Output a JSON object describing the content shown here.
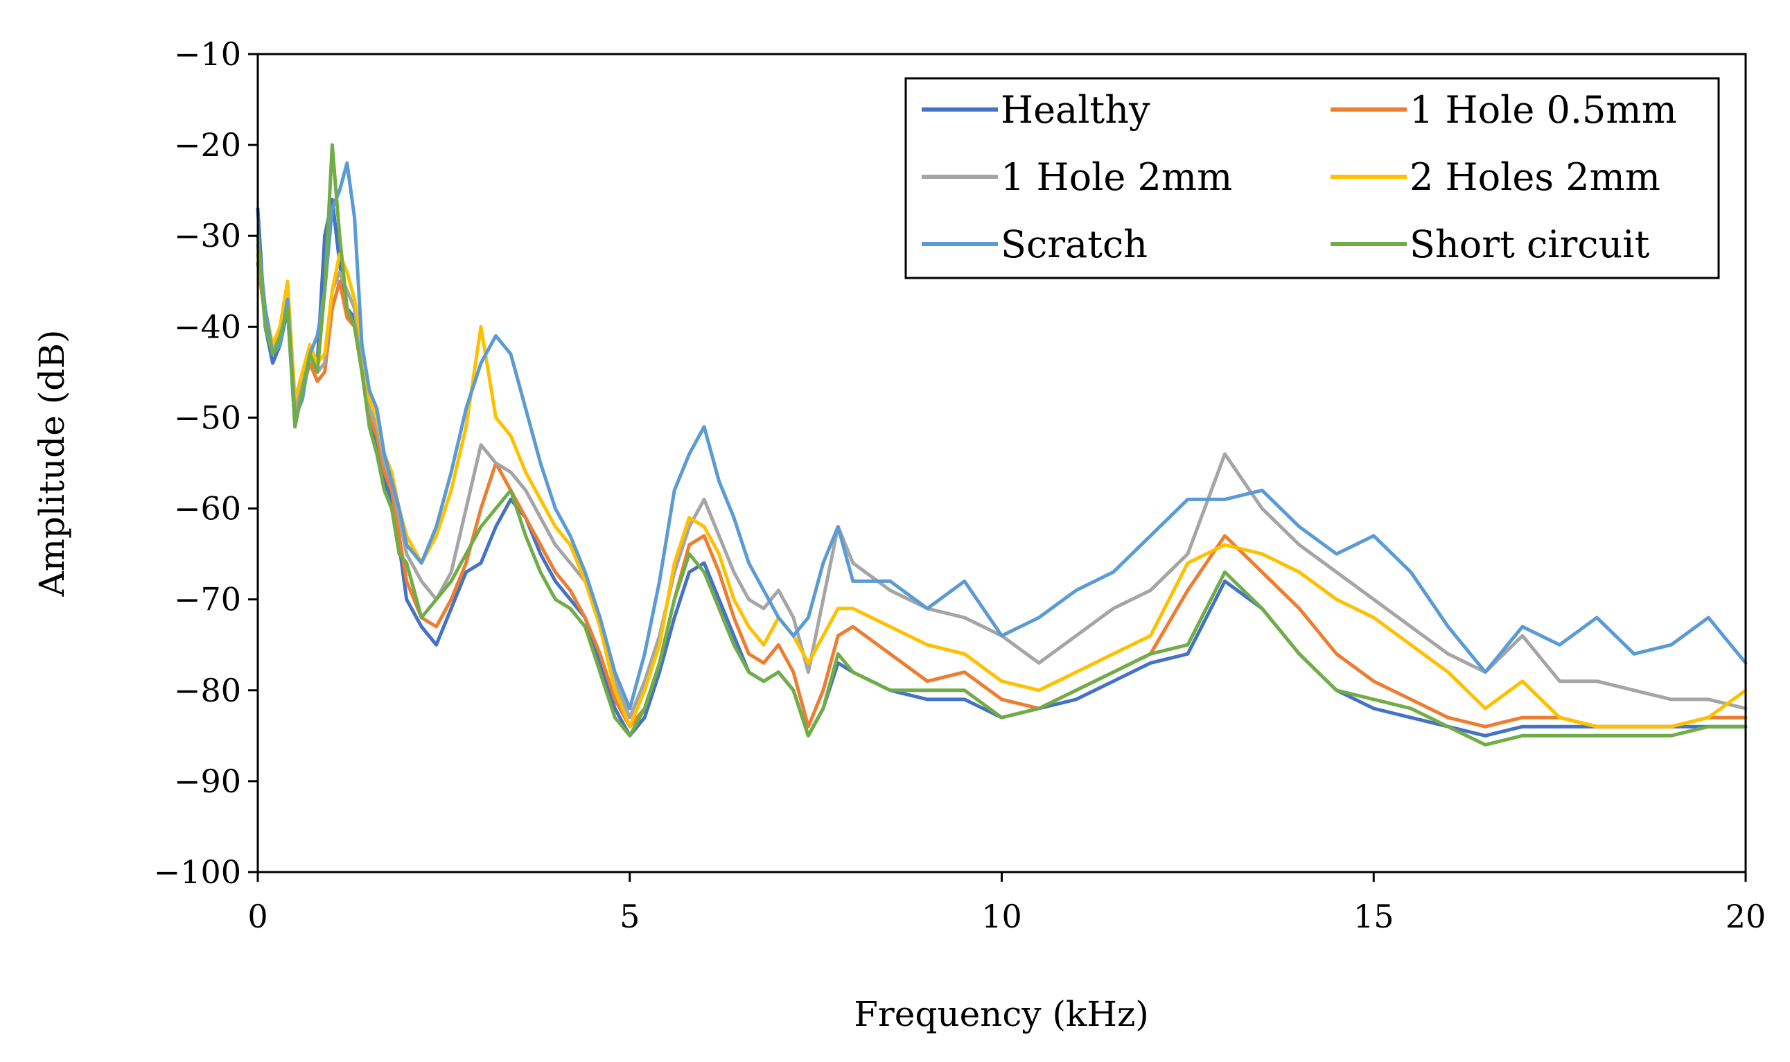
{
  "chart_data": {
    "type": "line",
    "title": "",
    "xlabel": "Frequency (kHz)",
    "ylabel": "Amplitude  (dB)",
    "xlim": [
      0,
      20
    ],
    "ylim": [
      -100,
      -10
    ],
    "xticks": [
      0,
      5,
      10,
      15,
      20
    ],
    "xtick_labels": [
      "0",
      "5",
      "10",
      "15",
      "20"
    ],
    "yticks": [
      -10,
      -20,
      -30,
      -40,
      -50,
      -60,
      -70,
      -80,
      -90,
      -100
    ],
    "ytick_labels": [
      "−10",
      "−20",
      "−30",
      "−40",
      "−50",
      "−60",
      "−70",
      "−80",
      "−90",
      "−100"
    ],
    "legend_position": "top-right",
    "legend_columns": 2,
    "x": [
      0,
      0.1,
      0.2,
      0.3,
      0.4,
      0.5,
      0.6,
      0.7,
      0.8,
      0.9,
      1.0,
      1.1,
      1.2,
      1.3,
      1.4,
      1.5,
      1.6,
      1.7,
      1.8,
      1.9,
      2.0,
      2.2,
      2.4,
      2.6,
      2.8,
      3.0,
      3.2,
      3.4,
      3.6,
      3.8,
      4.0,
      4.2,
      4.4,
      4.6,
      4.8,
      5.0,
      5.2,
      5.4,
      5.6,
      5.8,
      6.0,
      6.2,
      6.4,
      6.6,
      6.8,
      7.0,
      7.2,
      7.4,
      7.6,
      7.8,
      8.0,
      8.5,
      9.0,
      9.5,
      10.0,
      10.5,
      11.0,
      11.5,
      12.0,
      12.5,
      13.0,
      13.5,
      14.0,
      14.5,
      15.0,
      15.5,
      16.0,
      16.5,
      17.0,
      17.5,
      18.0,
      18.5,
      19.0,
      19.5,
      20.0
    ],
    "series": [
      {
        "name": "Healthy",
        "color": "#4472C4",
        "values": [
          -27,
          -40,
          -44,
          -42,
          -38,
          -51,
          -46,
          -42,
          -44,
          -30,
          -26,
          -33,
          -38,
          -39,
          -43,
          -50,
          -53,
          -57,
          -59,
          -64,
          -70,
          -73,
          -75,
          -71,
          -67,
          -66,
          -62,
          -59,
          -61,
          -65,
          -68,
          -70,
          -72,
          -77,
          -82,
          -85,
          -83,
          -78,
          -72,
          -67,
          -66,
          -70,
          -74,
          -78,
          -79,
          -78,
          -80,
          -85,
          -82,
          -77,
          -78,
          -80,
          -81,
          -81,
          -83,
          -82,
          -81,
          -79,
          -77,
          -76,
          -68,
          -71,
          -76,
          -80,
          -82,
          -83,
          -84,
          -85,
          -84,
          -84,
          -84,
          -84,
          -84,
          -84,
          -84
        ]
      },
      {
        "name": "1 Hole 0.5mm",
        "color": "#ED7D31",
        "values": [
          -33,
          -39,
          -43,
          -41,
          -37,
          -50,
          -47,
          -44,
          -46,
          -45,
          -38,
          -35,
          -39,
          -40,
          -45,
          -50,
          -52,
          -56,
          -58,
          -63,
          -68,
          -72,
          -73,
          -70,
          -66,
          -60,
          -55,
          -58,
          -61,
          -64,
          -67,
          -69,
          -72,
          -76,
          -81,
          -84,
          -82,
          -77,
          -70,
          -64,
          -63,
          -67,
          -72,
          -76,
          -77,
          -75,
          -78,
          -84,
          -80,
          -74,
          -73,
          -76,
          -79,
          -78,
          -81,
          -82,
          -80,
          -78,
          -76,
          -69,
          -63,
          -67,
          -71,
          -76,
          -79,
          -81,
          -83,
          -84,
          -83,
          -83,
          -84,
          -84,
          -84,
          -83,
          -83
        ]
      },
      {
        "name": "1 Hole 2mm",
        "color": "#A5A5A5",
        "values": [
          -31,
          -39,
          -43,
          -41,
          -37,
          -49,
          -46,
          -43,
          -45,
          -44,
          -36,
          -34,
          -36,
          -38,
          -44,
          -49,
          -51,
          -55,
          -57,
          -61,
          -65,
          -68,
          -70,
          -67,
          -60,
          -53,
          -55,
          -56,
          -58,
          -61,
          -64,
          -66,
          -68,
          -72,
          -79,
          -83,
          -79,
          -74,
          -67,
          -62,
          -59,
          -63,
          -67,
          -70,
          -71,
          -69,
          -72,
          -78,
          -70,
          -62,
          -66,
          -69,
          -71,
          -72,
          -74,
          -77,
          -74,
          -71,
          -69,
          -65,
          -54,
          -60,
          -64,
          -67,
          -70,
          -73,
          -76,
          -78,
          -74,
          -79,
          -79,
          -80,
          -81,
          -81,
          -82
        ]
      },
      {
        "name": "2 Holes 2mm",
        "color": "#FFC000",
        "values": [
          -32,
          -38,
          -42,
          -40,
          -35,
          -48,
          -45,
          -42,
          -44,
          -43,
          -36,
          -32,
          -34,
          -37,
          -42,
          -48,
          -50,
          -54,
          -56,
          -60,
          -63,
          -66,
          -63,
          -58,
          -51,
          -40,
          -50,
          -52,
          -56,
          -59,
          -62,
          -64,
          -68,
          -73,
          -80,
          -84,
          -80,
          -75,
          -66,
          -61,
          -62,
          -65,
          -70,
          -73,
          -75,
          -72,
          -74,
          -77,
          -74,
          -71,
          -71,
          -73,
          -75,
          -76,
          -79,
          -80,
          -78,
          -76,
          -74,
          -66,
          -64,
          -65,
          -67,
          -70,
          -72,
          -75,
          -78,
          -82,
          -79,
          -83,
          -84,
          -84,
          -84,
          -83,
          -80
        ]
      },
      {
        "name": "Scratch",
        "color": "#5B9BD5",
        "values": [
          -30,
          -38,
          -43,
          -42,
          -37,
          -50,
          -48,
          -43,
          -41,
          -36,
          -27,
          -25,
          -22,
          -28,
          -42,
          -47,
          -49,
          -54,
          -57,
          -60,
          -64,
          -66,
          -62,
          -56,
          -49,
          -44,
          -41,
          -43,
          -49,
          -55,
          -60,
          -63,
          -67,
          -72,
          -78,
          -82,
          -76,
          -68,
          -58,
          -54,
          -51,
          -57,
          -61,
          -66,
          -69,
          -72,
          -74,
          -72,
          -66,
          -62,
          -68,
          -68,
          -71,
          -68,
          -74,
          -72,
          -69,
          -67,
          -63,
          -59,
          -59,
          -58,
          -62,
          -65,
          -63,
          -67,
          -73,
          -78,
          -73,
          -75,
          -72,
          -76,
          -75,
          -72,
          -77
        ]
      },
      {
        "name": "Short circuit",
        "color": "#70AD47",
        "values": [
          -30,
          -40,
          -43,
          -41,
          -38,
          -51,
          -47,
          -43,
          -45,
          -36,
          -20,
          -30,
          -38,
          -40,
          -45,
          -51,
          -54,
          -58,
          -60,
          -65,
          -66,
          -72,
          -70,
          -68,
          -65,
          -62,
          -60,
          -58,
          -63,
          -67,
          -70,
          -71,
          -73,
          -78,
          -83,
          -85,
          -82,
          -77,
          -70,
          -65,
          -67,
          -71,
          -75,
          -78,
          -79,
          -78,
          -80,
          -85,
          -82,
          -76,
          -78,
          -80,
          -80,
          -80,
          -83,
          -82,
          -80,
          -78,
          -76,
          -75,
          -67,
          -71,
          -76,
          -80,
          -81,
          -82,
          -84,
          -86,
          -85,
          -85,
          -85,
          -85,
          -85,
          -84,
          -84
        ]
      }
    ]
  }
}
